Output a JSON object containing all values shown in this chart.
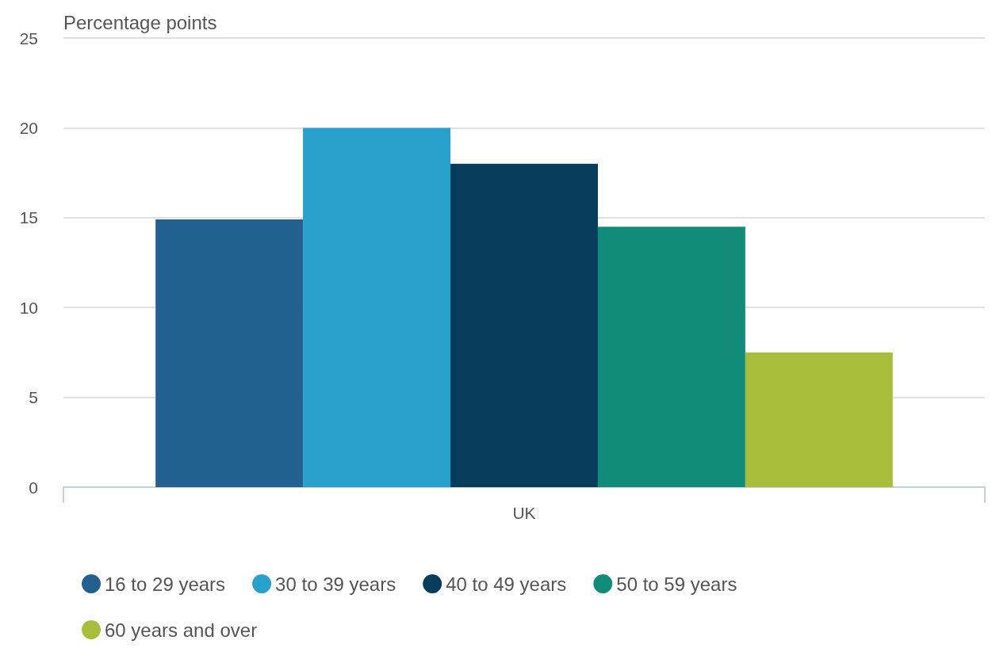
{
  "chart_data": {
    "type": "bar",
    "ylabel": "Percentage points",
    "categories": [
      "UK"
    ],
    "series": [
      {
        "name": "16 to 29 years",
        "color": "#21608f",
        "values": [
          14.9
        ]
      },
      {
        "name": "30 to 39 years",
        "color": "#27a0cc",
        "values": [
          20
        ]
      },
      {
        "name": "40 to 49 years",
        "color": "#063d5a",
        "values": [
          18
        ]
      },
      {
        "name": "50 to 59 years",
        "color": "#118c7b",
        "values": [
          14.5
        ]
      },
      {
        "name": "60 years and over",
        "color": "#a8bd3a",
        "values": [
          7.5
        ]
      }
    ],
    "ylim": [
      0,
      25
    ],
    "yticks": [
      0,
      5,
      10,
      15,
      20,
      25
    ],
    "grid": "y",
    "legend": "bottom"
  }
}
